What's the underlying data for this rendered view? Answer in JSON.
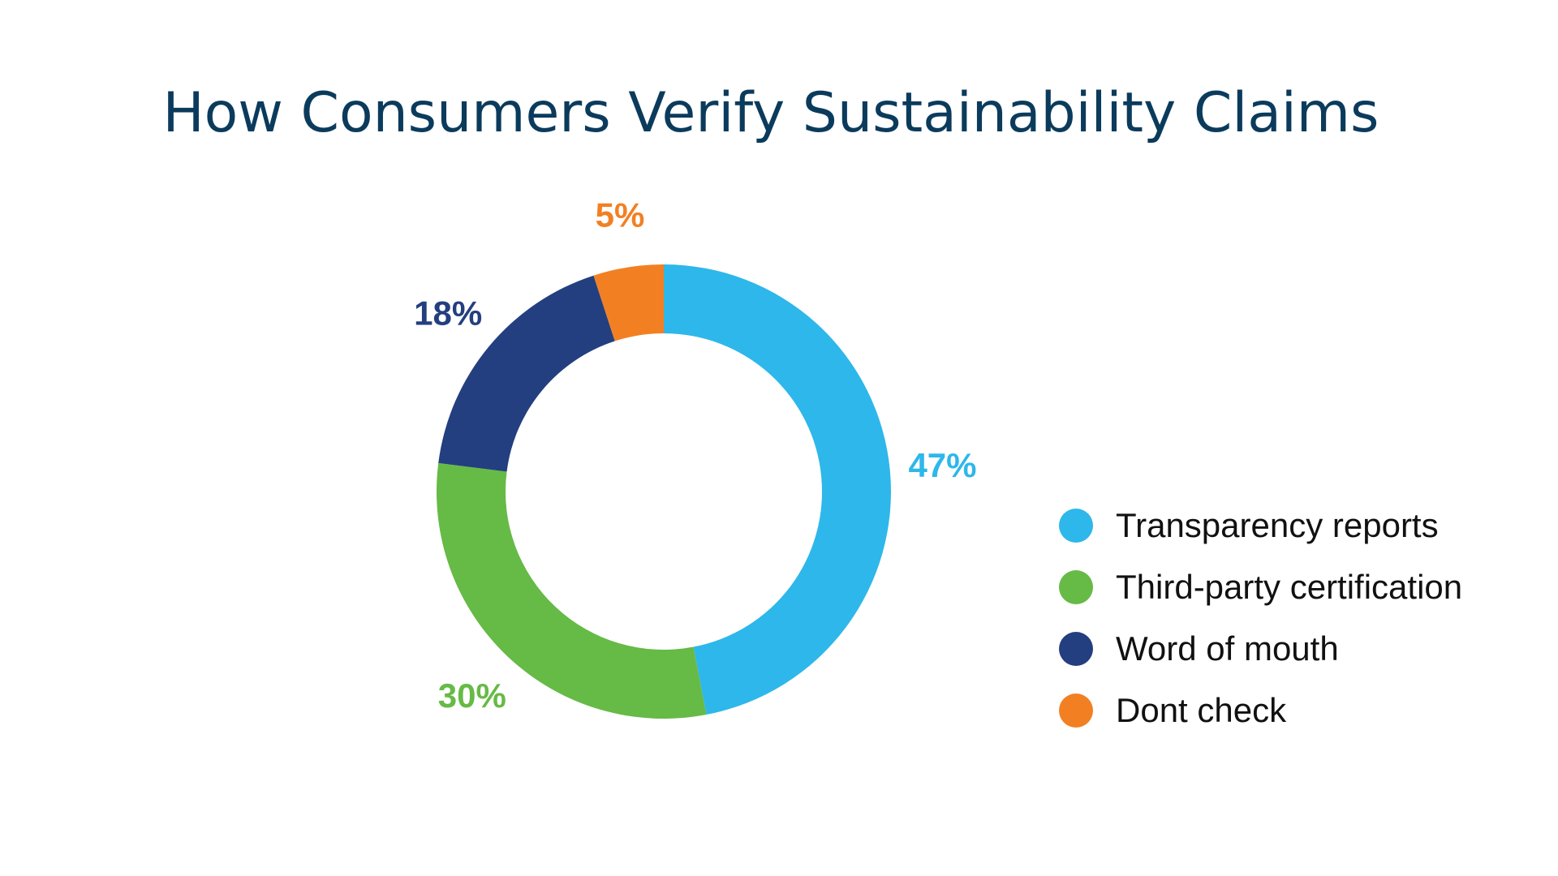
{
  "chart_data": {
    "type": "pie",
    "subtype": "donut",
    "title": "How Consumers Verify Sustainability Claims",
    "categories": [
      "Transparency reports",
      "Third-party certification",
      "Word of mouth",
      "Dont check"
    ],
    "values": [
      47,
      30,
      18,
      5
    ],
    "value_labels": [
      "47%",
      "30%",
      "18%",
      "5%"
    ],
    "colors": [
      "#2eb7ea",
      "#66ba46",
      "#233f7f",
      "#f28023"
    ],
    "legend_position": "right",
    "start_angle": "12 o'clock",
    "direction": "clockwise"
  }
}
